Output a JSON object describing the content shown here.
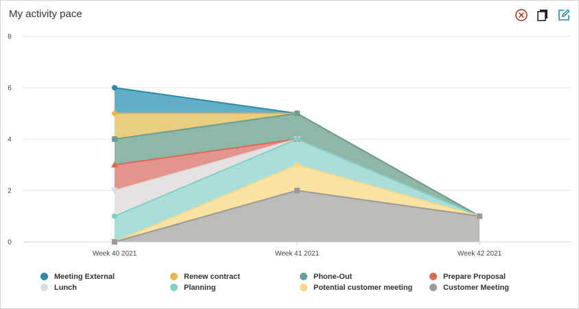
{
  "header": {
    "title": "My activity pace",
    "icons": [
      "close-circle-icon",
      "copy-icon",
      "edit-icon"
    ]
  },
  "colors": {
    "close_icon": "#a23b2a",
    "copy_icon": "#222222",
    "edit_icon": "#1b8ba8",
    "grid": "#e6e6e6"
  },
  "chart_data": {
    "type": "area",
    "stacked": false,
    "title": "",
    "xlabel": "",
    "ylabel": "",
    "categories": [
      "Week 40 2021",
      "Week 41 2021",
      "Week 42 2021"
    ],
    "ylim": [
      0,
      8
    ],
    "yticks": [
      0,
      2,
      4,
      6,
      8
    ],
    "grid": true,
    "legend_position": "bottom",
    "series": [
      {
        "name": "Meeting External",
        "values": [
          6,
          5,
          1
        ],
        "color": "#2b8aa8",
        "fill": "#5aaac4",
        "marker": "circle"
      },
      {
        "name": "Renew contract",
        "values": [
          5,
          5,
          1
        ],
        "color": "#e9b64c",
        "fill": "#f0cf7d",
        "marker": "diamond"
      },
      {
        "name": "Phone-Out",
        "values": [
          4,
          5,
          1
        ],
        "color": "#6b9e91",
        "fill": "#8ab5aa",
        "marker": "square"
      },
      {
        "name": "Prepare Proposal",
        "values": [
          3,
          4,
          1
        ],
        "color": "#d96a55",
        "fill": "#e8918a",
        "marker": "triangle"
      },
      {
        "name": "Lunch",
        "values": [
          2,
          4,
          1
        ],
        "color": "#dcdcdc",
        "fill": "#e6e6e6",
        "marker": "triangle-down"
      },
      {
        "name": "Planning",
        "values": [
          1,
          4,
          1
        ],
        "color": "#82cfc8",
        "fill": "#a6ddd8",
        "marker": "circle"
      },
      {
        "name": "Potential customer meeting",
        "values": [
          0,
          3,
          1
        ],
        "color": "#f5d98a",
        "fill": "#fde3a0",
        "marker": "diamond"
      },
      {
        "name": "Customer Meeting",
        "values": [
          0,
          2,
          1
        ],
        "color": "#9a9a9a",
        "fill": "#b8b8b8",
        "marker": "square"
      }
    ]
  }
}
